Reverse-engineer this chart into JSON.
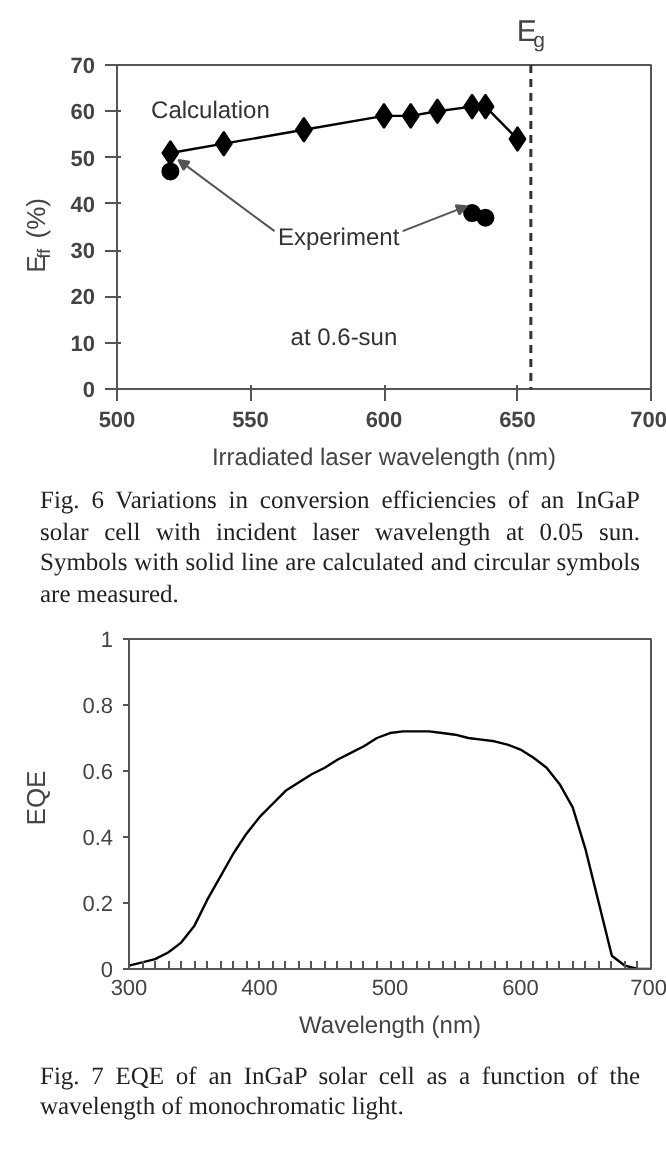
{
  "chart_data": [
    {
      "type": "line",
      "xlabel": "Irradiated laser wavelength (nm)",
      "ylabel": "E$_{ff}$ (%)",
      "xlim": [
        500,
        700
      ],
      "xticks": [
        500,
        550,
        600,
        650,
        700
      ],
      "ylim": [
        0,
        70
      ],
      "yticks": [
        0,
        10,
        20,
        30,
        40,
        50,
        60,
        70
      ],
      "grid": false,
      "series": [
        {
          "type": "line",
          "marker": "diamond",
          "color": "#000000",
          "x": [
            520,
            540,
            570,
            600,
            610,
            620,
            633,
            638,
            650
          ],
          "values": [
            51,
            53,
            56,
            59,
            59,
            60,
            61,
            61,
            54
          ]
        },
        {
          "type": "scatter",
          "marker": "circle",
          "color": "#000000",
          "x": [
            520,
            633,
            638
          ],
          "values": [
            47,
            38,
            37
          ]
        }
      ],
      "ref_lines": [
        {
          "axis": "x",
          "value": 655,
          "label": "E$_{g}$",
          "line_style": "dashed",
          "color": "#333333"
        }
      ],
      "annotations": [
        "Calculation",
        {
          "text": "Experiment",
          "x": 520,
          "y": 47
        },
        "at 0.6-sun",
        "Fig. 6 Variations in conversion efficiencies of an InGaP solar cell with incident laser wavelength at 0.05 sun.  Symbols with solid line are calculated and circular symbols are measured."
      ]
    },
    {
      "type": "line",
      "xlabel": "Wavelength (nm)",
      "ylabel": "EQE",
      "xlim": [
        300,
        700
      ],
      "xticks": [
        300,
        {
          "value": 310,
          "label": null
        },
        {
          "value": 320,
          "label": null
        },
        {
          "value": 330,
          "label": null
        },
        {
          "value": 340,
          "label": null
        },
        {
          "value": 350,
          "label": null
        },
        {
          "value": 360,
          "label": null
        },
        {
          "value": 370,
          "label": null
        },
        {
          "value": 380,
          "label": null
        },
        {
          "value": 390,
          "label": null
        },
        400,
        {
          "value": 410,
          "label": null
        },
        {
          "value": 420,
          "label": null
        },
        {
          "value": 430,
          "label": null
        },
        {
          "value": 440,
          "label": null
        },
        {
          "value": 450,
          "label": null
        },
        {
          "value": 460,
          "label": null
        },
        {
          "value": 470,
          "label": null
        },
        {
          "value": 480,
          "label": null
        },
        {
          "value": 490,
          "label": null
        },
        500,
        {
          "value": 510,
          "label": null
        },
        {
          "value": 520,
          "label": null
        },
        {
          "value": 530,
          "label": null
        },
        {
          "value": 540,
          "label": null
        },
        {
          "value": 550,
          "label": null
        },
        {
          "value": 560,
          "label": null
        },
        {
          "value": 570,
          "label": null
        },
        {
          "value": 580,
          "label": null
        },
        {
          "value": 590,
          "label": null
        },
        600,
        {
          "value": 610,
          "label": null
        },
        {
          "value": 620,
          "label": null
        },
        {
          "value": 630,
          "label": null
        },
        {
          "value": 640,
          "label": null
        },
        {
          "value": 650,
          "label": null
        },
        {
          "value": 660,
          "label": null
        },
        {
          "value": 670,
          "label": null
        },
        {
          "value": 680,
          "label": null
        },
        {
          "value": 690,
          "label": null
        },
        700
      ],
      "ylim": [
        0,
        1
      ],
      "yticks": [
        0,
        0.2,
        0.4,
        0.6,
        0.8,
        1
      ],
      "grid": false,
      "series": [
        {
          "color": "#000000",
          "marker": "none",
          "x": [
            300,
            320,
            330,
            340,
            350,
            360,
            370,
            380,
            390,
            400,
            410,
            420,
            430,
            440,
            450,
            460,
            470,
            480,
            490,
            500,
            510,
            520,
            530,
            540,
            550,
            560,
            570,
            580,
            590,
            600,
            610,
            620,
            630,
            640,
            650,
            660,
            670,
            680,
            690,
            700
          ],
          "values": [
            0.01,
            0.03,
            0.05,
            0.08,
            0.13,
            0.21,
            0.28,
            0.35,
            0.41,
            0.46,
            0.5,
            0.54,
            0.565,
            0.59,
            0.61,
            0.635,
            0.655,
            0.675,
            0.7,
            0.715,
            0.72,
            0.72,
            0.72,
            0.715,
            0.71,
            0.7,
            0.695,
            0.69,
            0.68,
            0.665,
            0.64,
            0.61,
            0.56,
            0.49,
            0.36,
            0.2,
            0.04,
            0.01,
            0,
            0
          ]
        }
      ],
      "annotations": [
        "Fig. 7 EQE of an InGaP solar cell as a function of the wavelength of monochromatic light."
      ]
    }
  ]
}
